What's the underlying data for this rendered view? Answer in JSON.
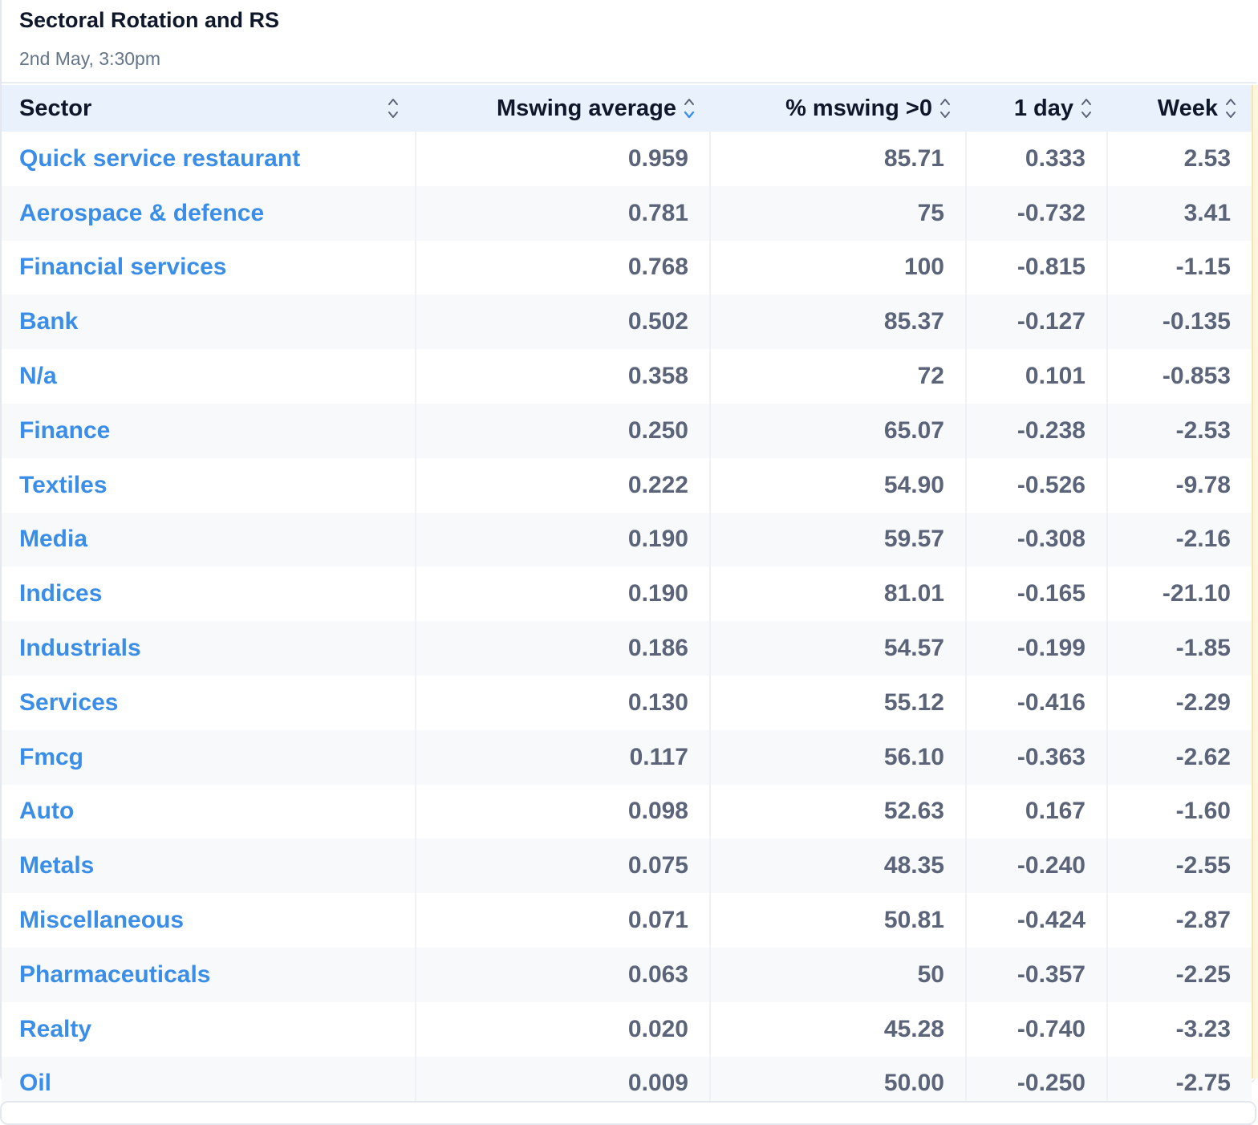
{
  "card": {
    "title": "Sectoral Rotation and RS",
    "subtitle": "2nd May, 3:30pm"
  },
  "table": {
    "columns": [
      {
        "label": "Sector",
        "sort_icon": "sort-updown-icon"
      },
      {
        "label": "Mswing average",
        "sort_icon": "sort-desc-icon"
      },
      {
        "label": "% mswing >0",
        "sort_icon": "sort-updown-icon"
      },
      {
        "label": "1 day",
        "sort_icon": "sort-updown-icon"
      },
      {
        "label": "Week",
        "sort_icon": "sort-updown-icon"
      }
    ],
    "rows": [
      {
        "sector": "Quick service restaurant",
        "avg": "0.959",
        "pct": "85.71",
        "day": "0.333",
        "week": "2.53"
      },
      {
        "sector": "Aerospace & defence",
        "avg": "0.781",
        "pct": "75",
        "day": "-0.732",
        "week": "3.41"
      },
      {
        "sector": "Financial services",
        "avg": "0.768",
        "pct": "100",
        "day": "-0.815",
        "week": "-1.15"
      },
      {
        "sector": "Bank",
        "avg": "0.502",
        "pct": "85.37",
        "day": "-0.127",
        "week": "-0.135"
      },
      {
        "sector": "N/a",
        "avg": "0.358",
        "pct": "72",
        "day": "0.101",
        "week": "-0.853"
      },
      {
        "sector": "Finance",
        "avg": "0.250",
        "pct": "65.07",
        "day": "-0.238",
        "week": "-2.53"
      },
      {
        "sector": "Textiles",
        "avg": "0.222",
        "pct": "54.90",
        "day": "-0.526",
        "week": "-9.78"
      },
      {
        "sector": "Media",
        "avg": "0.190",
        "pct": "59.57",
        "day": "-0.308",
        "week": "-2.16"
      },
      {
        "sector": "Indices",
        "avg": "0.190",
        "pct": "81.01",
        "day": "-0.165",
        "week": "-21.10"
      },
      {
        "sector": "Industrials",
        "avg": "0.186",
        "pct": "54.57",
        "day": "-0.199",
        "week": "-1.85"
      },
      {
        "sector": "Services",
        "avg": "0.130",
        "pct": "55.12",
        "day": "-0.416",
        "week": "-2.29"
      },
      {
        "sector": "Fmcg",
        "avg": "0.117",
        "pct": "56.10",
        "day": "-0.363",
        "week": "-2.62"
      },
      {
        "sector": "Auto",
        "avg": "0.098",
        "pct": "52.63",
        "day": "0.167",
        "week": "-1.60"
      },
      {
        "sector": "Metals",
        "avg": "0.075",
        "pct": "48.35",
        "day": "-0.240",
        "week": "-2.55"
      },
      {
        "sector": "Miscellaneous",
        "avg": "0.071",
        "pct": "50.81",
        "day": "-0.424",
        "week": "-2.87"
      },
      {
        "sector": "Pharmaceuticals",
        "avg": "0.063",
        "pct": "50",
        "day": "-0.357",
        "week": "-2.25"
      },
      {
        "sector": "Realty",
        "avg": "0.020",
        "pct": "45.28",
        "day": "-0.740",
        "week": "-3.23"
      },
      {
        "sector": "Oil",
        "avg": "0.009",
        "pct": "50.00",
        "day": "-0.250",
        "week": "-2.75"
      }
    ]
  },
  "colors": {
    "header_bg": "#e9f1fd",
    "link": "#3b8ee8",
    "number": "#5b6478",
    "stripe": "#f7f9fb"
  }
}
